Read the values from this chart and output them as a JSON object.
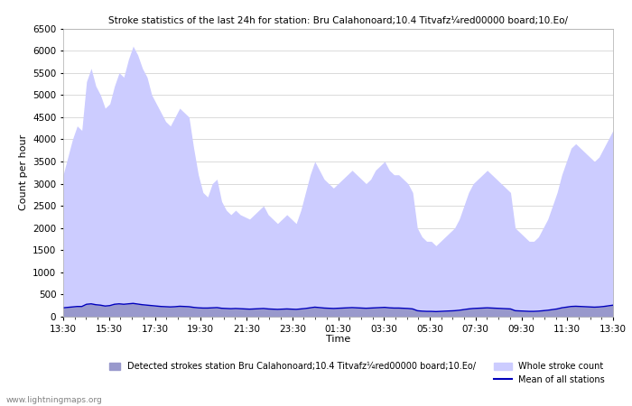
{
  "title": "Stroke statistics of the last 24h for station: Bru Calahonoard;10.4 Titvafz¼red00000 board;10.Eo/",
  "ylabel": "Count per hour",
  "xlabel": "Time",
  "ylim": [
    0,
    6500
  ],
  "yticks": [
    0,
    500,
    1000,
    1500,
    2000,
    2500,
    3000,
    3500,
    4000,
    4500,
    5000,
    5500,
    6000,
    6500
  ],
  "xtick_labels": [
    "13:30",
    "15:30",
    "17:30",
    "19:30",
    "21:30",
    "23:30",
    "01:30",
    "03:30",
    "05:30",
    "07:30",
    "09:30",
    "11:30",
    "13:30"
  ],
  "fill_color_whole": "#ccccff",
  "fill_color_detected": "#9999cc",
  "line_color_mean": "#0000bb",
  "background_color": "#ffffff",
  "grid_color": "#cccccc",
  "watermark": "www.lightningmaps.org",
  "legend_labels": [
    "Whole stroke count",
    "Detected strokes station Bru Calahonoard;10.4 Titvafz¼red00000 board;10.Eo/",
    "Mean of all stations"
  ],
  "whole_stroke_data": [
    3200,
    3600,
    4000,
    4300,
    4200,
    5300,
    5600,
    5200,
    5000,
    4700,
    4800,
    5200,
    5500,
    5400,
    5800,
    6100,
    5900,
    5600,
    5400,
    5000,
    4800,
    4600,
    4400,
    4300,
    4500,
    4700,
    4600,
    4500,
    3800,
    3200,
    2800,
    2700,
    3000,
    3100,
    2600,
    2400,
    2300,
    2400,
    2300,
    2250,
    2200,
    2300,
    2400,
    2500,
    2300,
    2200,
    2100,
    2200,
    2300,
    2200,
    2100,
    2400,
    2800,
    3200,
    3500,
    3300,
    3100,
    3000,
    2900,
    3000,
    3100,
    3200,
    3300,
    3200,
    3100,
    3000,
    3100,
    3300,
    3400,
    3500,
    3300,
    3200,
    3200,
    3100,
    3000,
    2800,
    2000,
    1800,
    1700,
    1700,
    1600,
    1700,
    1800,
    1900,
    2000,
    2200,
    2500,
    2800,
    3000,
    3100,
    3200,
    3300,
    3200,
    3100,
    3000,
    2900,
    2800,
    2000,
    1900,
    1800,
    1700,
    1700,
    1800,
    2000,
    2200,
    2500,
    2800,
    3200,
    3500,
    3800,
    3900,
    3800,
    3700,
    3600,
    3500,
    3600,
    3800,
    4000,
    4200
  ],
  "detected_stroke_data": [
    200,
    210,
    220,
    230,
    230,
    280,
    290,
    270,
    260,
    240,
    250,
    280,
    290,
    280,
    290,
    300,
    285,
    270,
    260,
    250,
    240,
    230,
    225,
    220,
    225,
    235,
    230,
    225,
    210,
    200,
    195,
    195,
    200,
    205,
    190,
    185,
    180,
    185,
    180,
    175,
    170,
    175,
    180,
    185,
    175,
    170,
    165,
    170,
    175,
    170,
    165,
    175,
    185,
    200,
    215,
    205,
    195,
    190,
    185,
    190,
    195,
    200,
    205,
    200,
    195,
    190,
    195,
    200,
    205,
    210,
    200,
    195,
    195,
    190,
    185,
    175,
    135,
    125,
    120,
    120,
    115,
    120,
    125,
    130,
    135,
    145,
    160,
    175,
    185,
    190,
    195,
    200,
    195,
    190,
    185,
    180,
    175,
    135,
    130,
    125,
    120,
    120,
    125,
    135,
    145,
    160,
    175,
    200,
    215,
    230,
    235,
    230,
    225,
    220,
    215,
    220,
    230,
    245,
    260
  ],
  "mean_line_data": [
    200,
    210,
    220,
    230,
    230,
    280,
    290,
    270,
    260,
    240,
    250,
    280,
    290,
    280,
    290,
    300,
    285,
    270,
    260,
    250,
    240,
    230,
    225,
    220,
    225,
    235,
    230,
    225,
    210,
    200,
    195,
    195,
    200,
    205,
    190,
    185,
    180,
    185,
    180,
    175,
    170,
    175,
    180,
    185,
    175,
    170,
    165,
    170,
    175,
    170,
    165,
    175,
    185,
    200,
    215,
    205,
    195,
    190,
    185,
    190,
    195,
    200,
    205,
    200,
    195,
    190,
    195,
    200,
    205,
    210,
    200,
    195,
    195,
    190,
    185,
    175,
    135,
    125,
    120,
    120,
    115,
    120,
    125,
    130,
    135,
    145,
    160,
    175,
    185,
    190,
    195,
    200,
    195,
    190,
    185,
    180,
    175,
    135,
    130,
    125,
    120,
    120,
    125,
    135,
    145,
    160,
    175,
    200,
    215,
    230,
    235,
    230,
    225,
    220,
    215,
    220,
    230,
    245,
    260
  ]
}
